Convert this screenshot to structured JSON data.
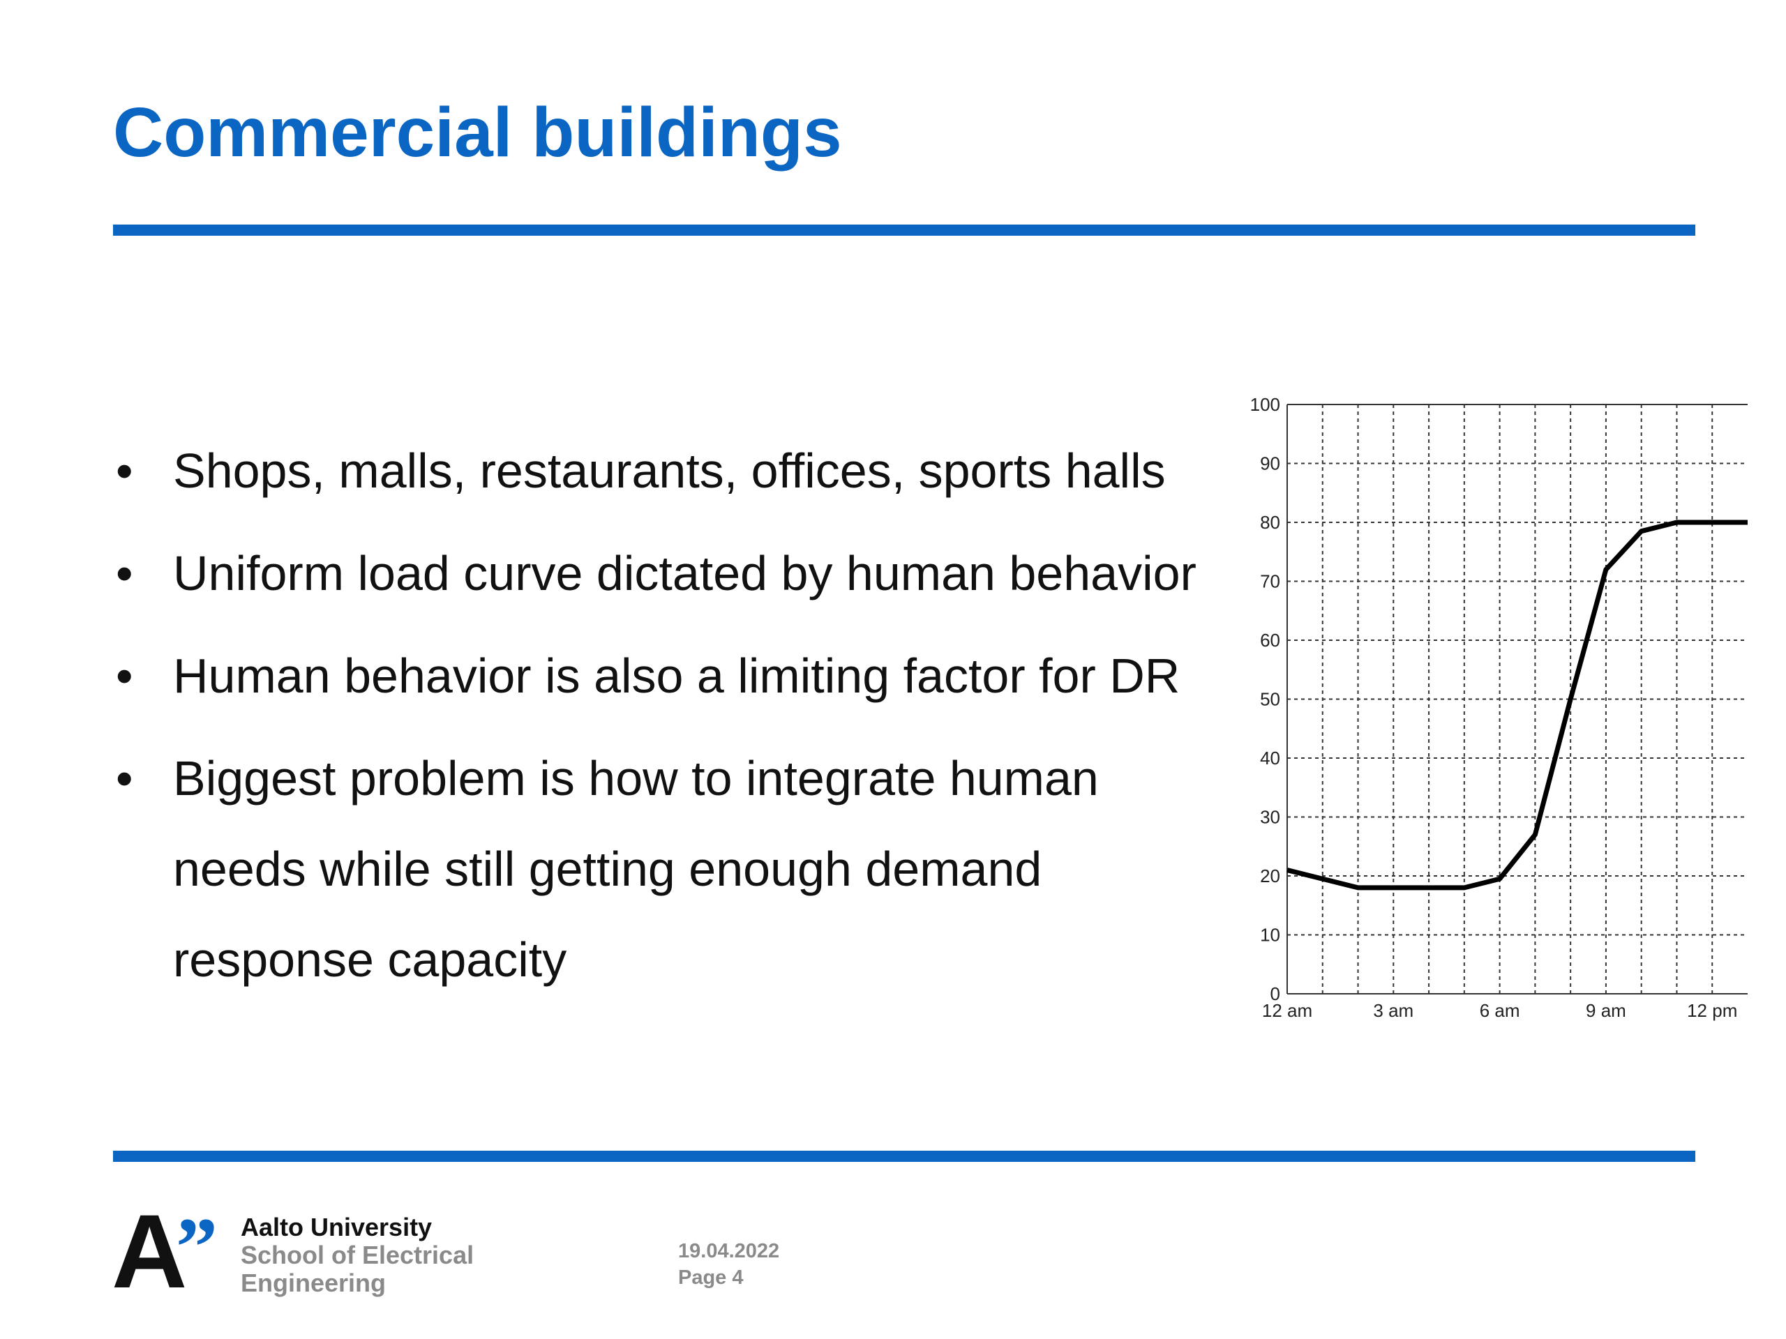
{
  "slide": {
    "title": "Commercial buildings",
    "accent_color": "#0b66c3"
  },
  "bullets": [
    {
      "text": "Shops, malls, restaurants, offices, sports halls"
    },
    {
      "text": "Uniform load curve dictated by human behavior"
    },
    {
      "text": "Human behavior is also a limiting factor for DR"
    },
    {
      "text": "Biggest problem is how to integrate human needs while still getting enough demand response capacity"
    }
  ],
  "bullet_symbol": "•",
  "chart_data": {
    "type": "line",
    "title": "",
    "xlabel": "",
    "ylabel": "",
    "ylim": [
      0,
      100
    ],
    "yticks": [
      0,
      10,
      20,
      30,
      40,
      50,
      60,
      70,
      80,
      90,
      100
    ],
    "xlim": [
      0,
      13
    ],
    "xticks": [
      {
        "value": 0,
        "label": "12 am"
      },
      {
        "value": 3,
        "label": "3 am"
      },
      {
        "value": 6,
        "label": "6 am"
      },
      {
        "value": 9,
        "label": "9 am"
      },
      {
        "value": 12,
        "label": "12 pm"
      }
    ],
    "grid": true,
    "series": [
      {
        "x": [
          0,
          1,
          2,
          3,
          4,
          5,
          6,
          7,
          8,
          9,
          10,
          11,
          12,
          13
        ],
        "y": [
          21,
          19.5,
          18,
          18,
          18,
          18,
          19.5,
          27,
          50,
          72,
          78.5,
          80,
          80,
          80
        ]
      }
    ]
  },
  "footer": {
    "logo_mark": "A",
    "logo_quote": "”",
    "university": "Aalto University",
    "school_line1": "School of Electrical",
    "school_line2": "Engineering",
    "date": "19.04.2022",
    "page": "Page 4"
  }
}
